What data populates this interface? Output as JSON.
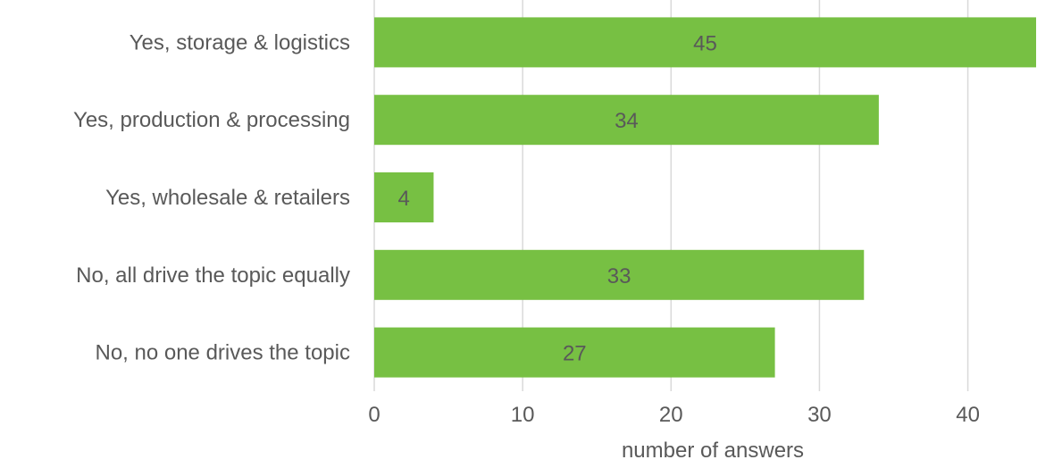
{
  "chart_data": {
    "type": "bar",
    "orientation": "horizontal",
    "categories": [
      "Yes, storage & logistics",
      "Yes, production & processing",
      "Yes, wholesale & retailers",
      "No, all drive the topic equally",
      "No, no one drives the topic"
    ],
    "values": [
      45,
      34,
      4,
      33,
      27
    ],
    "data_labels": [
      "45",
      "34",
      "4",
      "33",
      "27"
    ],
    "xlabel": "number of  answers",
    "xlim": [
      0,
      44.6
    ],
    "xticks": [
      0,
      10,
      20,
      30,
      40
    ],
    "xtick_labels": [
      "0",
      "10",
      "20",
      "30",
      "40"
    ],
    "grid": "vertical",
    "legend": "none",
    "colors": {
      "bar": "#77c043",
      "grid": "#d9d9d9",
      "text": "#595959"
    }
  }
}
